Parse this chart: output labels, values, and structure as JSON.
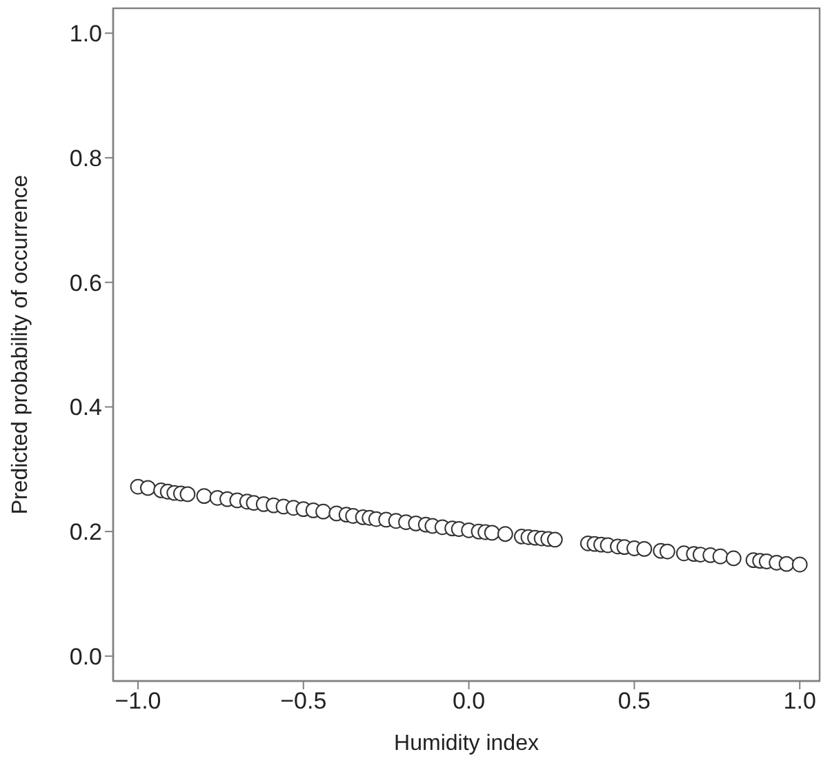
{
  "chart_data": {
    "type": "scatter",
    "xlabel": "Humidity index",
    "ylabel": "Predicted probability of occurrence",
    "xlim": [
      -1.075,
      1.06
    ],
    "xticks": [
      {
        "value": -1,
        "label": "−1.0"
      },
      {
        "value": -0.5,
        "label": "−0.5"
      },
      {
        "value": 0,
        "label": "0.0"
      },
      {
        "value": 0.5,
        "label": "0.5"
      },
      {
        "value": 1,
        "label": "1.0"
      }
    ],
    "ylim": [
      -0.04,
      1.04
    ],
    "yticks": [
      {
        "value": 0,
        "label": "0.0"
      },
      {
        "value": 0.2,
        "label": "0.2"
      },
      {
        "value": 0.4,
        "label": "0.4"
      },
      {
        "value": 0.6,
        "label": "0.6"
      },
      {
        "value": 0.8,
        "label": "0.8"
      },
      {
        "value": 1,
        "label": "1.0"
      }
    ],
    "grid": false,
    "legend": false,
    "marker": "circle",
    "series": [
      {
        "color": "#333333",
        "x": [
          -1.0,
          -0.97,
          -0.93,
          -0.91,
          -0.89,
          -0.87,
          -0.85,
          -0.8,
          -0.76,
          -0.73,
          -0.7,
          -0.67,
          -0.65,
          -0.62,
          -0.59,
          -0.56,
          -0.53,
          -0.5,
          -0.47,
          -0.44,
          -0.4,
          -0.37,
          -0.35,
          -0.32,
          -0.3,
          -0.28,
          -0.25,
          -0.22,
          -0.19,
          -0.16,
          -0.13,
          -0.11,
          -0.08,
          -0.05,
          -0.03,
          0.0,
          0.03,
          0.05,
          0.07,
          0.11,
          0.16,
          0.18,
          0.2,
          0.22,
          0.24,
          0.26,
          0.36,
          0.38,
          0.4,
          0.42,
          0.45,
          0.47,
          0.5,
          0.53,
          0.58,
          0.6,
          0.65,
          0.68,
          0.7,
          0.73,
          0.76,
          0.8,
          0.86,
          0.88,
          0.9,
          0.93,
          0.96,
          1.0
        ],
        "values": [
          0.272,
          0.27,
          0.266,
          0.264,
          0.262,
          0.261,
          0.26,
          0.257,
          0.254,
          0.252,
          0.25,
          0.248,
          0.246,
          0.244,
          0.242,
          0.24,
          0.238,
          0.236,
          0.234,
          0.232,
          0.229,
          0.227,
          0.225,
          0.223,
          0.222,
          0.22,
          0.219,
          0.217,
          0.215,
          0.213,
          0.211,
          0.209,
          0.207,
          0.205,
          0.204,
          0.202,
          0.2,
          0.199,
          0.198,
          0.196,
          0.192,
          0.191,
          0.19,
          0.189,
          0.188,
          0.187,
          0.181,
          0.18,
          0.179,
          0.178,
          0.176,
          0.175,
          0.173,
          0.172,
          0.169,
          0.168,
          0.165,
          0.164,
          0.163,
          0.162,
          0.16,
          0.157,
          0.154,
          0.153,
          0.152,
          0.15,
          0.148,
          0.147
        ]
      }
    ]
  }
}
